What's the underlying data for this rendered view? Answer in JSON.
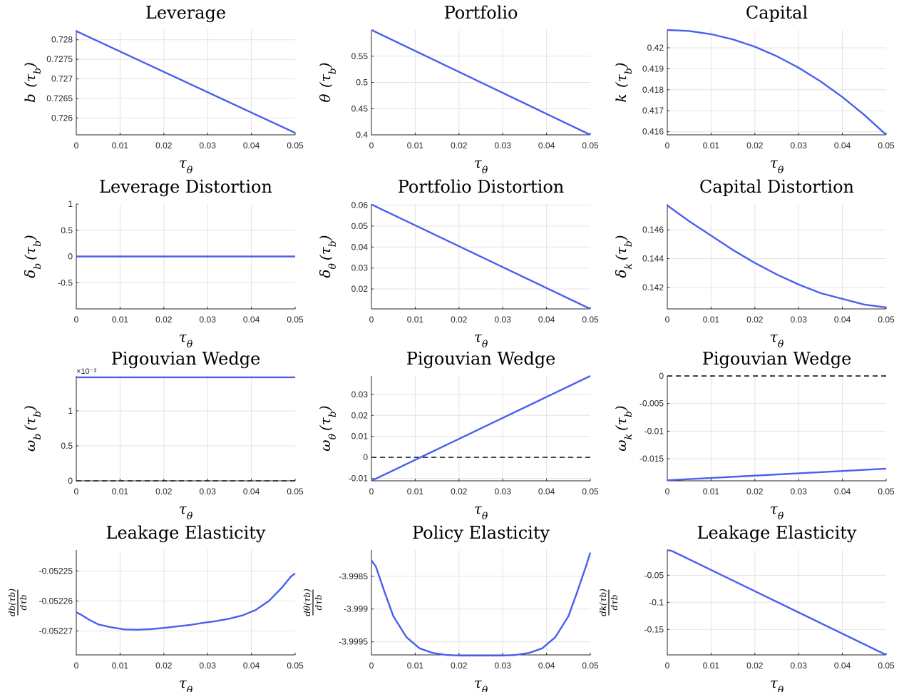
{
  "colors": {
    "series": "#4a5ff0",
    "reference": "#000000",
    "grid": "#e3e3e3"
  },
  "chart_data": [
    {
      "type": "line",
      "title": "Leverage",
      "xlabel": "τθ",
      "ylabel": "b (τb)",
      "xlim": [
        0,
        0.05
      ],
      "ylim": [
        0.72557,
        0.72825
      ],
      "xticks": [
        0,
        0.01,
        0.02,
        0.03,
        0.04,
        0.05
      ],
      "xticklabels": [
        "0",
        "0.01",
        "0.02",
        "0.03",
        "0.04",
        "0.05"
      ],
      "yticks": [
        0.726,
        0.7265,
        0.727,
        0.7275,
        0.728
      ],
      "yticklabels": [
        "0.726",
        "0.7265",
        "0.727",
        "0.7275",
        "0.728"
      ],
      "grid": true,
      "series": [
        {
          "x": [
            0,
            0.05
          ],
          "y": [
            0.72822,
            0.72562
          ]
        }
      ]
    },
    {
      "type": "line",
      "title": "Portfolio",
      "xlabel": "τθ",
      "ylabel": "θ (τb)",
      "xlim": [
        0,
        0.05
      ],
      "ylim": [
        0.4,
        0.6
      ],
      "xticks": [
        0,
        0.01,
        0.02,
        0.03,
        0.04,
        0.05
      ],
      "xticklabels": [
        "0",
        "0.01",
        "0.02",
        "0.03",
        "0.04",
        "0.05"
      ],
      "yticks": [
        0.4,
        0.45,
        0.5,
        0.55
      ],
      "yticklabels": [
        "0.4",
        "0.45",
        "0.5",
        "0.55"
      ],
      "grid": true,
      "series": [
        {
          "x": [
            0,
            0.05
          ],
          "y": [
            0.6,
            0.4
          ]
        }
      ]
    },
    {
      "type": "line",
      "title": "Capital",
      "xlabel": "τθ",
      "ylabel": "k (τb)",
      "xlim": [
        0,
        0.05
      ],
      "ylim": [
        0.41585,
        0.42085
      ],
      "xticks": [
        0,
        0.01,
        0.02,
        0.03,
        0.04,
        0.05
      ],
      "xticklabels": [
        "0",
        "0.01",
        "0.02",
        "0.03",
        "0.04",
        "0.05"
      ],
      "yticks": [
        0.416,
        0.417,
        0.418,
        0.419,
        0.42
      ],
      "yticklabels": [
        "0.416",
        "0.417",
        "0.418",
        "0.419",
        "0.42"
      ],
      "grid": true,
      "series": [
        {
          "x": [
            0,
            0.005,
            0.01,
            0.015,
            0.02,
            0.025,
            0.03,
            0.035,
            0.04,
            0.045,
            0.05
          ],
          "y": [
            0.42085,
            0.4208,
            0.42065,
            0.4204,
            0.42005,
            0.4196,
            0.41905,
            0.4184,
            0.41765,
            0.4168,
            0.41585
          ]
        }
      ]
    },
    {
      "type": "line",
      "title": "Leverage Distortion",
      "xlabel": "τθ",
      "ylabel": "δb (τb)",
      "xlim": [
        0,
        0.05
      ],
      "ylim": [
        -1,
        1
      ],
      "xticks": [
        0,
        0.01,
        0.02,
        0.03,
        0.04,
        0.05
      ],
      "xticklabels": [
        "0",
        "0.01",
        "0.02",
        "0.03",
        "0.04",
        "0.05"
      ],
      "yticks": [
        -0.5,
        0,
        0.5,
        1
      ],
      "yticklabels": [
        "-0.5",
        "0",
        "0.5",
        "1"
      ],
      "grid": true,
      "series": [
        {
          "x": [
            0,
            0.05
          ],
          "y": [
            0,
            0
          ]
        }
      ]
    },
    {
      "type": "line",
      "title": "Portfolio Distortion",
      "xlabel": "τθ",
      "ylabel": "δθ (τb)",
      "xlim": [
        0,
        0.05
      ],
      "ylim": [
        0.0105,
        0.0605
      ],
      "xticks": [
        0,
        0.01,
        0.02,
        0.03,
        0.04,
        0.05
      ],
      "xticklabels": [
        "0",
        "0.01",
        "0.02",
        "0.03",
        "0.04",
        "0.05"
      ],
      "yticks": [
        0.02,
        0.03,
        0.04,
        0.05,
        0.06
      ],
      "yticklabels": [
        "0.02",
        "0.03",
        "0.04",
        "0.05",
        "0.06"
      ],
      "grid": true,
      "series": [
        {
          "x": [
            0,
            0.05
          ],
          "y": [
            0.0603,
            0.0105
          ]
        }
      ]
    },
    {
      "type": "line",
      "title": "Capital Distortion",
      "xlabel": "τθ",
      "ylabel": "δk (τb)",
      "xlim": [
        0,
        0.05
      ],
      "ylim": [
        0.1405,
        0.1478
      ],
      "xticks": [
        0,
        0.01,
        0.02,
        0.03,
        0.04,
        0.05
      ],
      "xticklabels": [
        "0",
        "0.01",
        "0.02",
        "0.03",
        "0.04",
        "0.05"
      ],
      "yticks": [
        0.142,
        0.144,
        0.146
      ],
      "yticklabels": [
        "0.142",
        "0.144",
        "0.146"
      ],
      "grid": true,
      "series": [
        {
          "x": [
            0,
            0.005,
            0.01,
            0.015,
            0.02,
            0.025,
            0.03,
            0.035,
            0.04,
            0.045,
            0.05
          ],
          "y": [
            0.1477,
            0.1466,
            0.1456,
            0.1446,
            0.1437,
            0.1429,
            0.1422,
            0.1416,
            0.1412,
            0.1408,
            0.1406
          ]
        }
      ]
    },
    {
      "type": "line",
      "title": "Pigouvian Wedge",
      "xlabel": "τθ",
      "ylabel": "ωb (τb)",
      "xlim": [
        0,
        0.05
      ],
      "ylim": [
        0,
        1.5
      ],
      "xticks": [
        0,
        0.01,
        0.02,
        0.03,
        0.04,
        0.05
      ],
      "xticklabels": [
        "0",
        "0.01",
        "0.02",
        "0.03",
        "0.04",
        "0.05"
      ],
      "yticks": [
        0,
        0.5,
        1
      ],
      "yticklabels": [
        "0",
        "0.5",
        "1"
      ],
      "yexponent": "×10⁻³",
      "grid": true,
      "series": [
        {
          "x": [
            0,
            0.05
          ],
          "y": [
            1.48,
            1.48
          ]
        }
      ],
      "reference": {
        "y": 0
      }
    },
    {
      "type": "line",
      "title": "Pigouvian Wedge",
      "xlabel": "τθ",
      "ylabel": "ωθ (τb)",
      "xlim": [
        0,
        0.05
      ],
      "ylim": [
        -0.0112,
        0.0388
      ],
      "xticks": [
        0,
        0.01,
        0.02,
        0.03,
        0.04,
        0.05
      ],
      "xticklabels": [
        "0",
        "0.01",
        "0.02",
        "0.03",
        "0.04",
        "0.05"
      ],
      "yticks": [
        -0.01,
        0,
        0.01,
        0.02,
        0.03
      ],
      "yticklabels": [
        "-0.01",
        "0",
        "0.01",
        "0.02",
        "0.03"
      ],
      "grid": true,
      "series": [
        {
          "x": [
            0,
            0.05
          ],
          "y": [
            -0.0112,
            0.0388
          ]
        }
      ],
      "reference": {
        "y": 0
      }
    },
    {
      "type": "line",
      "title": "Pigouvian Wedge",
      "xlabel": "τθ",
      "ylabel": "ωk (τb)",
      "xlim": [
        0,
        0.05
      ],
      "ylim": [
        -0.019,
        0
      ],
      "xticks": [
        0,
        0.01,
        0.02,
        0.03,
        0.04,
        0.05
      ],
      "xticklabels": [
        "0",
        "0.01",
        "0.02",
        "0.03",
        "0.04",
        "0.05"
      ],
      "yticks": [
        -0.015,
        -0.01,
        -0.005,
        0
      ],
      "yticklabels": [
        "-0.015",
        "-0.01",
        "-0.005",
        "0"
      ],
      "grid": true,
      "series": [
        {
          "x": [
            0,
            0.05
          ],
          "y": [
            -0.0189,
            -0.0168
          ]
        }
      ],
      "reference": {
        "y": 0
      }
    },
    {
      "type": "line",
      "title": "Leakage Elasticity",
      "xlabel": "τθ",
      "ylabel_num": "db(τb)",
      "ylabel_den": "dτb",
      "xlim": [
        0,
        0.05
      ],
      "ylim": [
        -0.052278,
        -0.052243
      ],
      "xticks": [
        0,
        0.01,
        0.02,
        0.03,
        0.04,
        0.05
      ],
      "xticklabels": [
        "0",
        "0.01",
        "0.02",
        "0.03",
        "0.04",
        "0.05"
      ],
      "yticks": [
        -0.05227,
        -0.05226,
        -0.05225
      ],
      "yticklabels": [
        "-0.05227",
        "-0.05226",
        "-0.05225"
      ],
      "grid": true,
      "series": [
        {
          "x": [
            0,
            0.001,
            0.003,
            0.005,
            0.008,
            0.011,
            0.014,
            0.017,
            0.02,
            0.023,
            0.026,
            0.029,
            0.032,
            0.035,
            0.038,
            0.041,
            0.044,
            0.047,
            0.049,
            0.05
          ],
          "y": [
            -0.0522638,
            -0.0522645,
            -0.0522663,
            -0.0522678,
            -0.0522688,
            -0.0522695,
            -0.0522696,
            -0.0522694,
            -0.052269,
            -0.0522685,
            -0.052268,
            -0.0522673,
            -0.0522667,
            -0.0522659,
            -0.0522648,
            -0.052263,
            -0.05226,
            -0.0522555,
            -0.0522519,
            -0.0522508
          ]
        }
      ]
    },
    {
      "type": "line",
      "title": "Policy Elasticity",
      "xlabel": "τθ",
      "ylabel_num": "dθ(τb)",
      "ylabel_den": "dτb",
      "xlim": [
        0,
        0.05
      ],
      "ylim": [
        -3.9997,
        -3.9981
      ],
      "xticks": [
        0,
        0.01,
        0.02,
        0.03,
        0.04,
        0.05
      ],
      "xticklabels": [
        "0",
        "0.01",
        "0.02",
        "0.03",
        "0.04",
        "0.05"
      ],
      "yticks": [
        -3.9995,
        -3.999,
        -3.9985
      ],
      "yticklabels": [
        "-3.9995",
        "-3.999",
        "-3.9985"
      ],
      "grid": true,
      "series": [
        {
          "x": [
            0,
            0.001,
            0.003,
            0.005,
            0.008,
            0.011,
            0.014,
            0.017,
            0.02,
            0.025,
            0.03,
            0.033,
            0.036,
            0.039,
            0.042,
            0.045,
            0.047,
            0.049,
            0.05
          ],
          "y": [
            -3.99826,
            -3.99835,
            -3.99874,
            -3.99911,
            -3.99943,
            -3.9996,
            -3.99967,
            -3.9997,
            -3.99971,
            -3.99971,
            -3.99971,
            -3.9997,
            -3.99967,
            -3.9996,
            -3.99943,
            -3.99911,
            -3.99874,
            -3.99835,
            -3.99814
          ]
        }
      ]
    },
    {
      "type": "line",
      "title": "Leakage Elasticity",
      "xlabel": "τθ",
      "ylabel_num": "dk(τb)",
      "ylabel_den": "dτb",
      "xlim": [
        0,
        0.05
      ],
      "ylim": [
        -0.197,
        -0.0035
      ],
      "xticks": [
        0,
        0.01,
        0.02,
        0.03,
        0.04,
        0.05
      ],
      "xticklabels": [
        "0",
        "0.01",
        "0.02",
        "0.03",
        "0.04",
        "0.05"
      ],
      "yticks": [
        -0.15,
        -0.1,
        -0.05
      ],
      "yticklabels": [
        "-0.15",
        "-0.1",
        "-0.05"
      ],
      "grid": true,
      "series": [
        {
          "x": [
            0,
            0.001,
            0.05
          ],
          "y": [
            -0.0035,
            -0.005,
            -0.197
          ]
        }
      ]
    }
  ]
}
